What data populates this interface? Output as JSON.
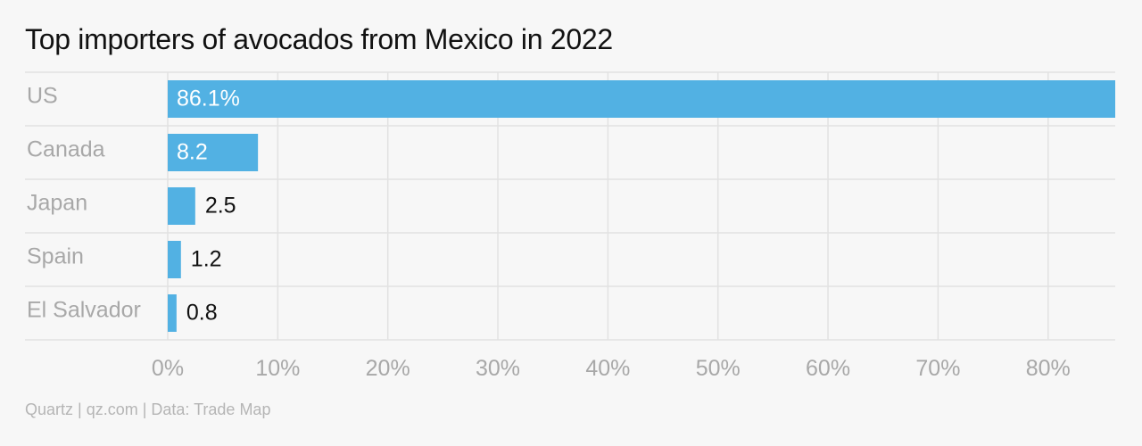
{
  "chart_data": {
    "type": "bar",
    "orientation": "horizontal",
    "title": "Top importers of avocados from Mexico in 2022",
    "categories": [
      "US",
      "Canada",
      "Japan",
      "Spain",
      "El Salvador"
    ],
    "values": [
      86.1,
      8.2,
      2.5,
      1.2,
      0.8
    ],
    "data_labels": [
      "86.1%",
      "8.2",
      "2.5",
      "1.2",
      "0.8"
    ],
    "xlabel": "",
    "ylabel": "",
    "xlim": [
      0,
      86.1
    ],
    "x_ticks": [
      0,
      10,
      20,
      30,
      40,
      50,
      60,
      70,
      80
    ],
    "x_tick_labels": [
      "0%",
      "10%",
      "20%",
      "30%",
      "40%",
      "50%",
      "60%",
      "70%",
      "80%"
    ],
    "grid": true,
    "legend": "none",
    "colors": {
      "bar": "#52b1e3",
      "grid": "#e2e2e2",
      "category_label": "#a8a8a8",
      "tick_label": "#a8a8a8",
      "label_inside": "#ffffff",
      "label_outside": "#111111",
      "background": "#f7f7f7"
    }
  },
  "footer": {
    "source": "Quartz | qz.com | Data: Trade Map"
  }
}
